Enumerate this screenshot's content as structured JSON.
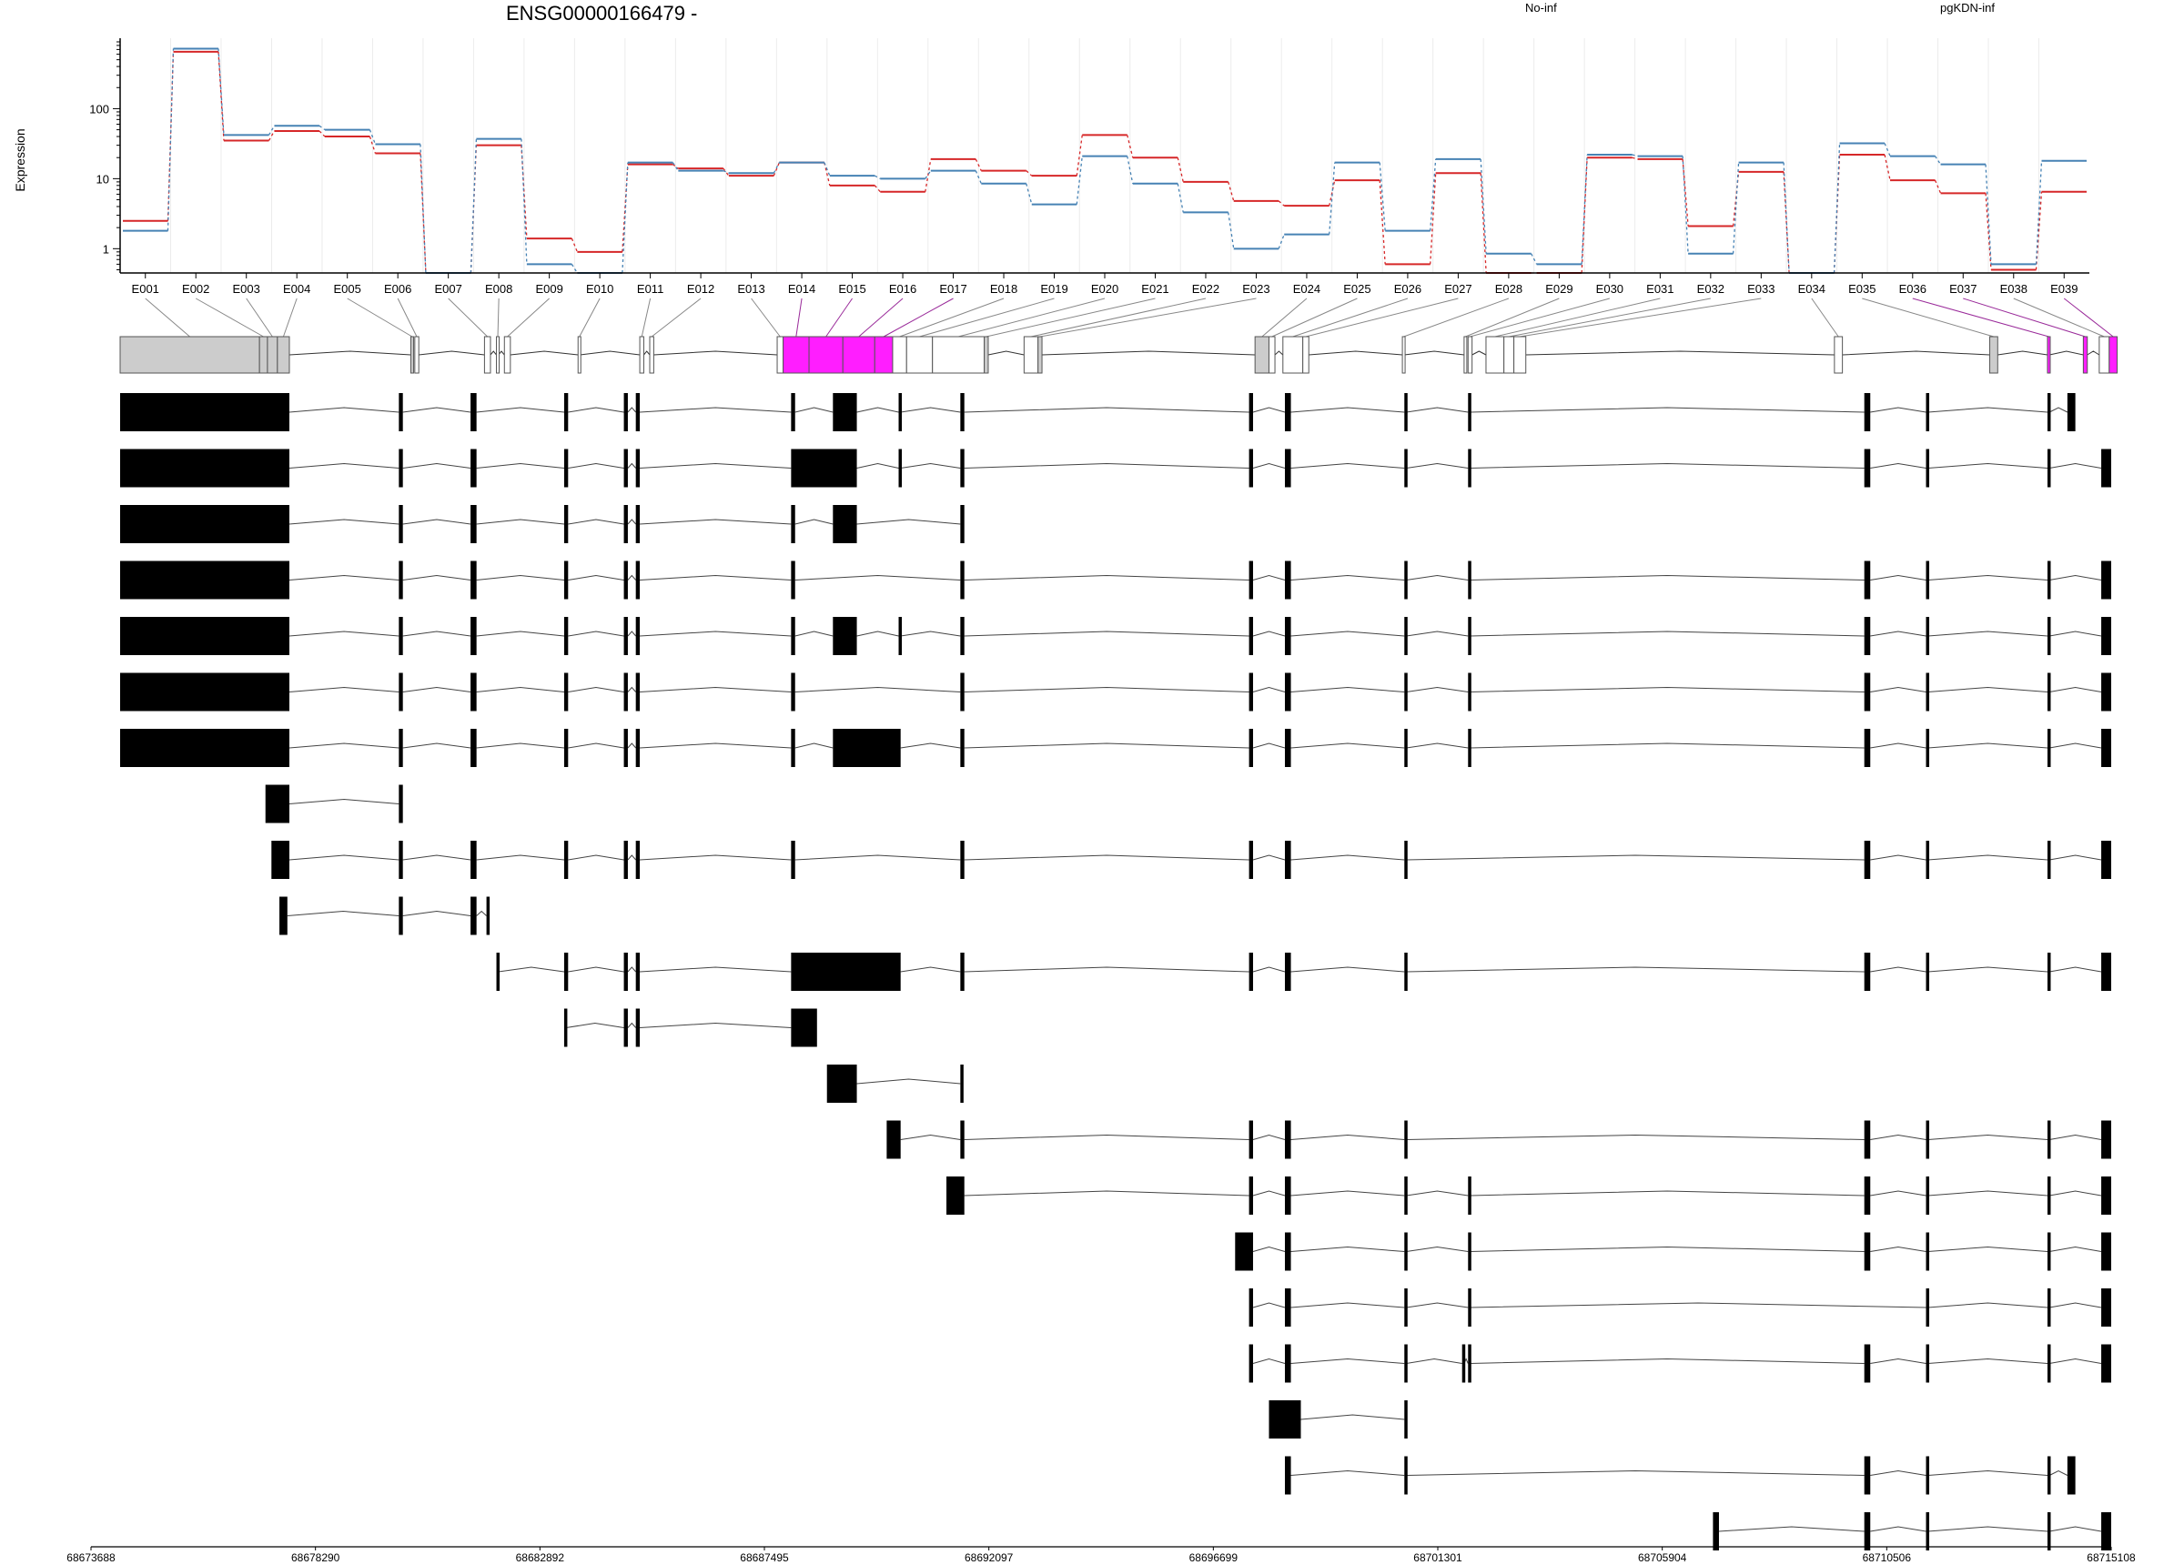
{
  "title": "ENSG00000166479 -",
  "ylabel": "Expression",
  "colors": {
    "no_inf": "#d62728",
    "pgkdn_inf": "#4682b4",
    "diff_exon": "#ff1eff",
    "diff_line": "#9a2b9a",
    "flat_exon": "#cccccc"
  },
  "legend": [
    {
      "label": "No-inf",
      "color": "#d62728"
    },
    {
      "label": "pgKDN-inf",
      "color": "#4682b4"
    }
  ],
  "genomic_ticks": [
    "68673688",
    "68678290",
    "68682892",
    "68687495",
    "68692097",
    "68696699",
    "68701301",
    "68705904",
    "68710506",
    "68715108"
  ],
  "chart_data": {
    "type": "line",
    "title": "ENSG00000166479 -",
    "ylabel": "Expression",
    "yscale": "log",
    "yticks": [
      "1",
      "10",
      "100"
    ],
    "ylim": [
      0.45,
      900
    ],
    "categories": [
      "E001",
      "E002",
      "E003",
      "E004",
      "E005",
      "E006",
      "E007",
      "E008",
      "E009",
      "E010",
      "E011",
      "E012",
      "E013",
      "E014",
      "E015",
      "E016",
      "E017",
      "E018",
      "E019",
      "E020",
      "E021",
      "E022",
      "E023",
      "E024",
      "E025",
      "E026",
      "E027",
      "E028",
      "E029",
      "E030",
      "E031",
      "E032",
      "E033",
      "E034",
      "E035",
      "E036",
      "E037",
      "E038",
      "E039"
    ],
    "series": [
      {
        "name": "No-inf",
        "color": "#d62728",
        "values": [
          2.5,
          650,
          35,
          48,
          40,
          23,
          0.45,
          30,
          1.4,
          0.9,
          16,
          14,
          11,
          17,
          8,
          6.5,
          19,
          13,
          11,
          42,
          20,
          9,
          4.8,
          4.1,
          9.5,
          0.6,
          12,
          0.45,
          0.45,
          20,
          19,
          2.1,
          12.5,
          0.45,
          22,
          9.5,
          6.2,
          0.5,
          6.5
        ]
      },
      {
        "name": "pgKDN-inf",
        "color": "#4682b4",
        "values": [
          1.8,
          720,
          42,
          57,
          50,
          31,
          0.45,
          37,
          0.6,
          0.45,
          17,
          13,
          12,
          17,
          11,
          10,
          13,
          8.5,
          4.3,
          21,
          8.5,
          3.3,
          1,
          1.6,
          17,
          1.8,
          19,
          0.85,
          0.6,
          22,
          21,
          0.85,
          17,
          0.45,
          32,
          21,
          16,
          0.6,
          18
        ]
      }
    ],
    "diff_exons": [
      "E014",
      "E015",
      "E016",
      "E017",
      "E036",
      "E037",
      "E039"
    ],
    "transcript_count": 21
  }
}
